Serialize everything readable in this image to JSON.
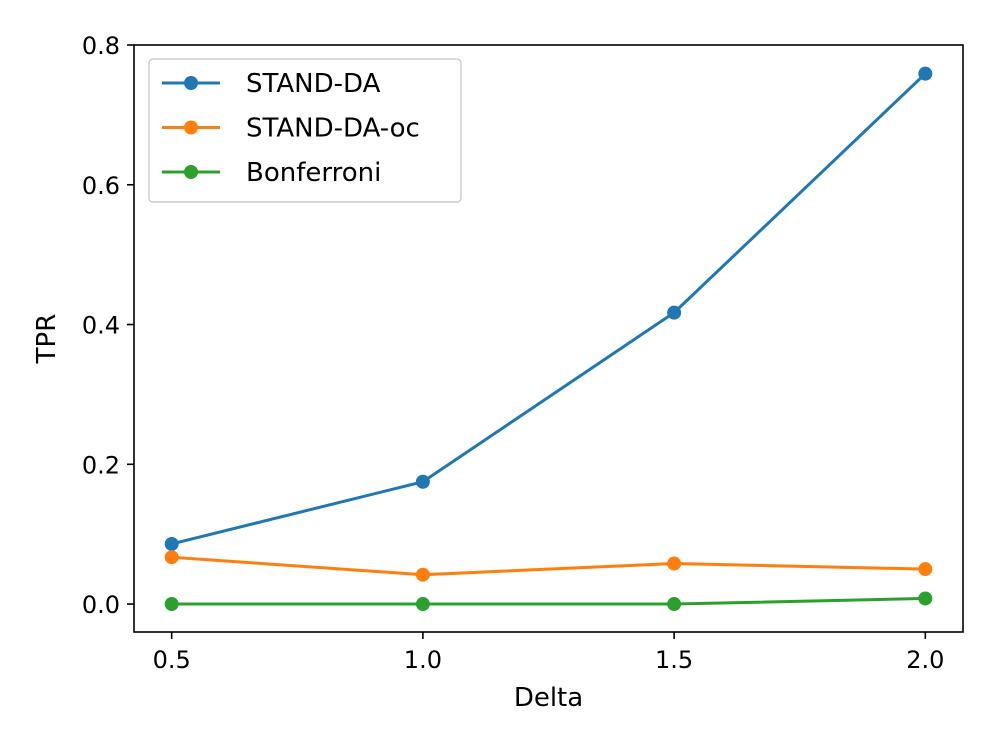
{
  "chart_data": {
    "type": "line",
    "title": "",
    "xlabel": "Delta",
    "ylabel": "TPR",
    "x": [
      0.5,
      1.0,
      1.5,
      2.0
    ],
    "xticks": [
      "0.5",
      "1.0",
      "1.5",
      "2.0"
    ],
    "yticks": [
      "0.0",
      "0.2",
      "0.4",
      "0.6",
      "0.8"
    ],
    "xlim": [
      0.425,
      2.075
    ],
    "ylim": [
      -0.04,
      0.8
    ],
    "grid": false,
    "legend_position": "top-left",
    "series": [
      {
        "name": "STAND-DA",
        "color": "#1f77b4",
        "values": [
          0.086,
          0.175,
          0.417,
          0.759
        ]
      },
      {
        "name": "STAND-DA-oc",
        "color": "#ff7f0e",
        "values": [
          0.067,
          0.042,
          0.058,
          0.05
        ]
      },
      {
        "name": "Bonferroni",
        "color": "#2ca02c",
        "values": [
          0.0,
          0.0,
          0.0,
          0.008
        ]
      }
    ]
  }
}
